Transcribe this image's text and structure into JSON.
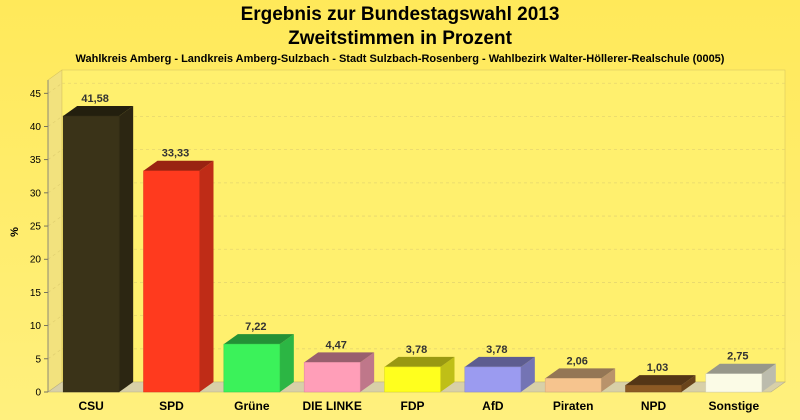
{
  "chart_data": {
    "type": "bar",
    "title": "Ergebnis zur Bundestagswahl 2013",
    "title_line2": "Zweitstimmen in Prozent",
    "subtitle": "Wahlkreis Amberg - Landkreis Amberg-Sulzbach - Stadt Sulzbach-Rosenberg - Wahlbezirk Walter-Höllerer-Realschule (0005)",
    "xlabel": "",
    "ylabel": "%",
    "ylim": [
      0,
      47
    ],
    "yticks": [
      0,
      5,
      10,
      15,
      20,
      25,
      30,
      35,
      40,
      45
    ],
    "grid": true,
    "categories": [
      "CSU",
      "SPD",
      "Grüne",
      "DIE LINKE",
      "FDP",
      "AfD",
      "Piraten",
      "NPD",
      "Sonstige"
    ],
    "values": [
      41.58,
      33.33,
      7.22,
      4.47,
      3.78,
      3.78,
      2.06,
      1.03,
      2.75
    ],
    "value_labels": [
      "41,58",
      "33,33",
      "7,22",
      "4,47",
      "3,78",
      "3,78",
      "2,06",
      "1,03",
      "2,75"
    ],
    "colors": [
      "#3a3318",
      "#ff3a1e",
      "#3bf25a",
      "#ff9eb8",
      "#ffff1e",
      "#9b9bf0",
      "#f6c48e",
      "#8c5a24",
      "#fbfbe6"
    ],
    "background": "#ffee6e"
  }
}
